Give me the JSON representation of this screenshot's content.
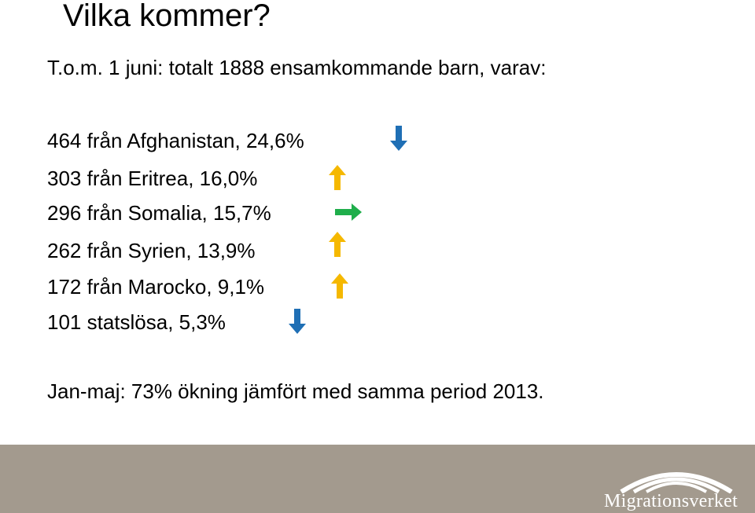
{
  "title": "Vilka kommer?",
  "intro": "T.o.m. 1 juni: totalt 1888 ensamkommande barn, varav:",
  "rows": [
    {
      "text": "464 från Afghanistan, 24,6%",
      "trend": "down",
      "trend_icon": "arrow-down-icon",
      "color": "#1f6fb5"
    },
    {
      "text": "303 från Eritrea, 16,0%",
      "trend": "up",
      "trend_icon": "arrow-up-icon",
      "color": "#f5b800"
    },
    {
      "text": "296 från Somalia, 15,7%",
      "trend": "right",
      "trend_icon": "arrow-right-icon",
      "color": "#1fae4b"
    },
    {
      "text": "262 från Syrien, 13,9%",
      "trend": "up",
      "trend_icon": "arrow-up-icon",
      "color": "#f5b800"
    },
    {
      "text": "172 från Marocko, 9,1%",
      "trend": "up",
      "trend_icon": "arrow-up-icon",
      "color": "#f5b800"
    },
    {
      "text": "101 statslösa, 5,3%",
      "trend": "down",
      "trend_icon": "arrow-down-icon",
      "color": "#1f6fb5"
    }
  ],
  "summary": "Jan-maj: 73% ökning jämfört med samma period 2013.",
  "footer": {
    "logo_text": "Migrationsverket",
    "background": "#a39a8e"
  }
}
